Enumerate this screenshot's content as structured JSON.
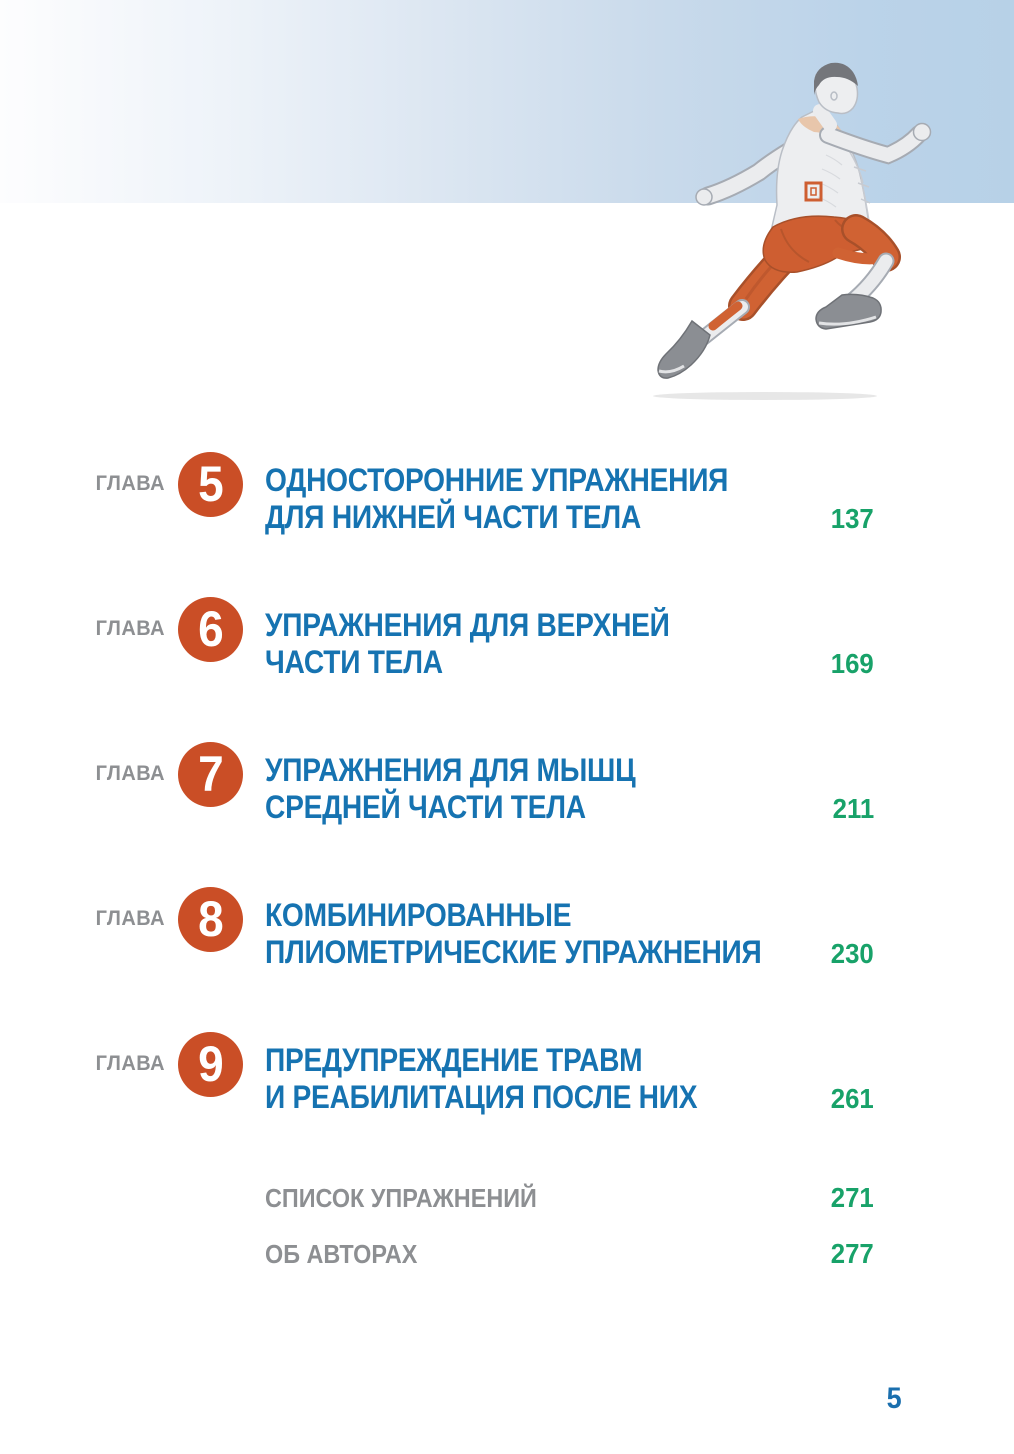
{
  "page": {
    "footer_page_number": "5"
  },
  "header": {
    "illustration": "running-man-muscle-anatomy"
  },
  "toc": {
    "chapter_label": "ГЛАВА",
    "chapters": [
      {
        "number": "5",
        "title_line1": "ОДНОСТОРОННИЕ УПРАЖНЕНИЯ",
        "title_line2": "ДЛЯ НИЖНЕЙ ЧАСТИ ТЕЛА",
        "page": "137"
      },
      {
        "number": "6",
        "title_line1": "УПРАЖНЕНИЯ ДЛЯ ВЕРХНЕЙ",
        "title_line2": "ЧАСТИ ТЕЛА",
        "page": "169"
      },
      {
        "number": "7",
        "title_line1": "УПРАЖНЕНИЯ ДЛЯ МЫШЦ",
        "title_line2": "СРЕДНЕЙ ЧАСТИ ТЕЛА",
        "page": "211"
      },
      {
        "number": "8",
        "title_line1": "КОМБИНИРОВАННЫЕ",
        "title_line2": "ПЛИОМЕТРИЧЕСКИЕ УПРАЖНЕНИЯ",
        "page": "230"
      },
      {
        "number": "9",
        "title_line1": "ПРЕДУПРЕЖДЕНИЕ ТРАВМ",
        "title_line2": "И РЕАБИЛИТАЦИЯ ПОСЛЕ НИХ",
        "page": "261"
      }
    ],
    "back_matter": [
      {
        "title": "СПИСОК УПРАЖНЕНИЙ",
        "page": "271"
      },
      {
        "title": "ОБ АВТОРАХ",
        "page": "277"
      }
    ]
  },
  "colors": {
    "title_blue": "#1673b1",
    "page_green": "#18a269",
    "chapter_orange": "#ca4e26",
    "label_gray": "#8d8f92",
    "band_blue": "#b7d1e7"
  }
}
